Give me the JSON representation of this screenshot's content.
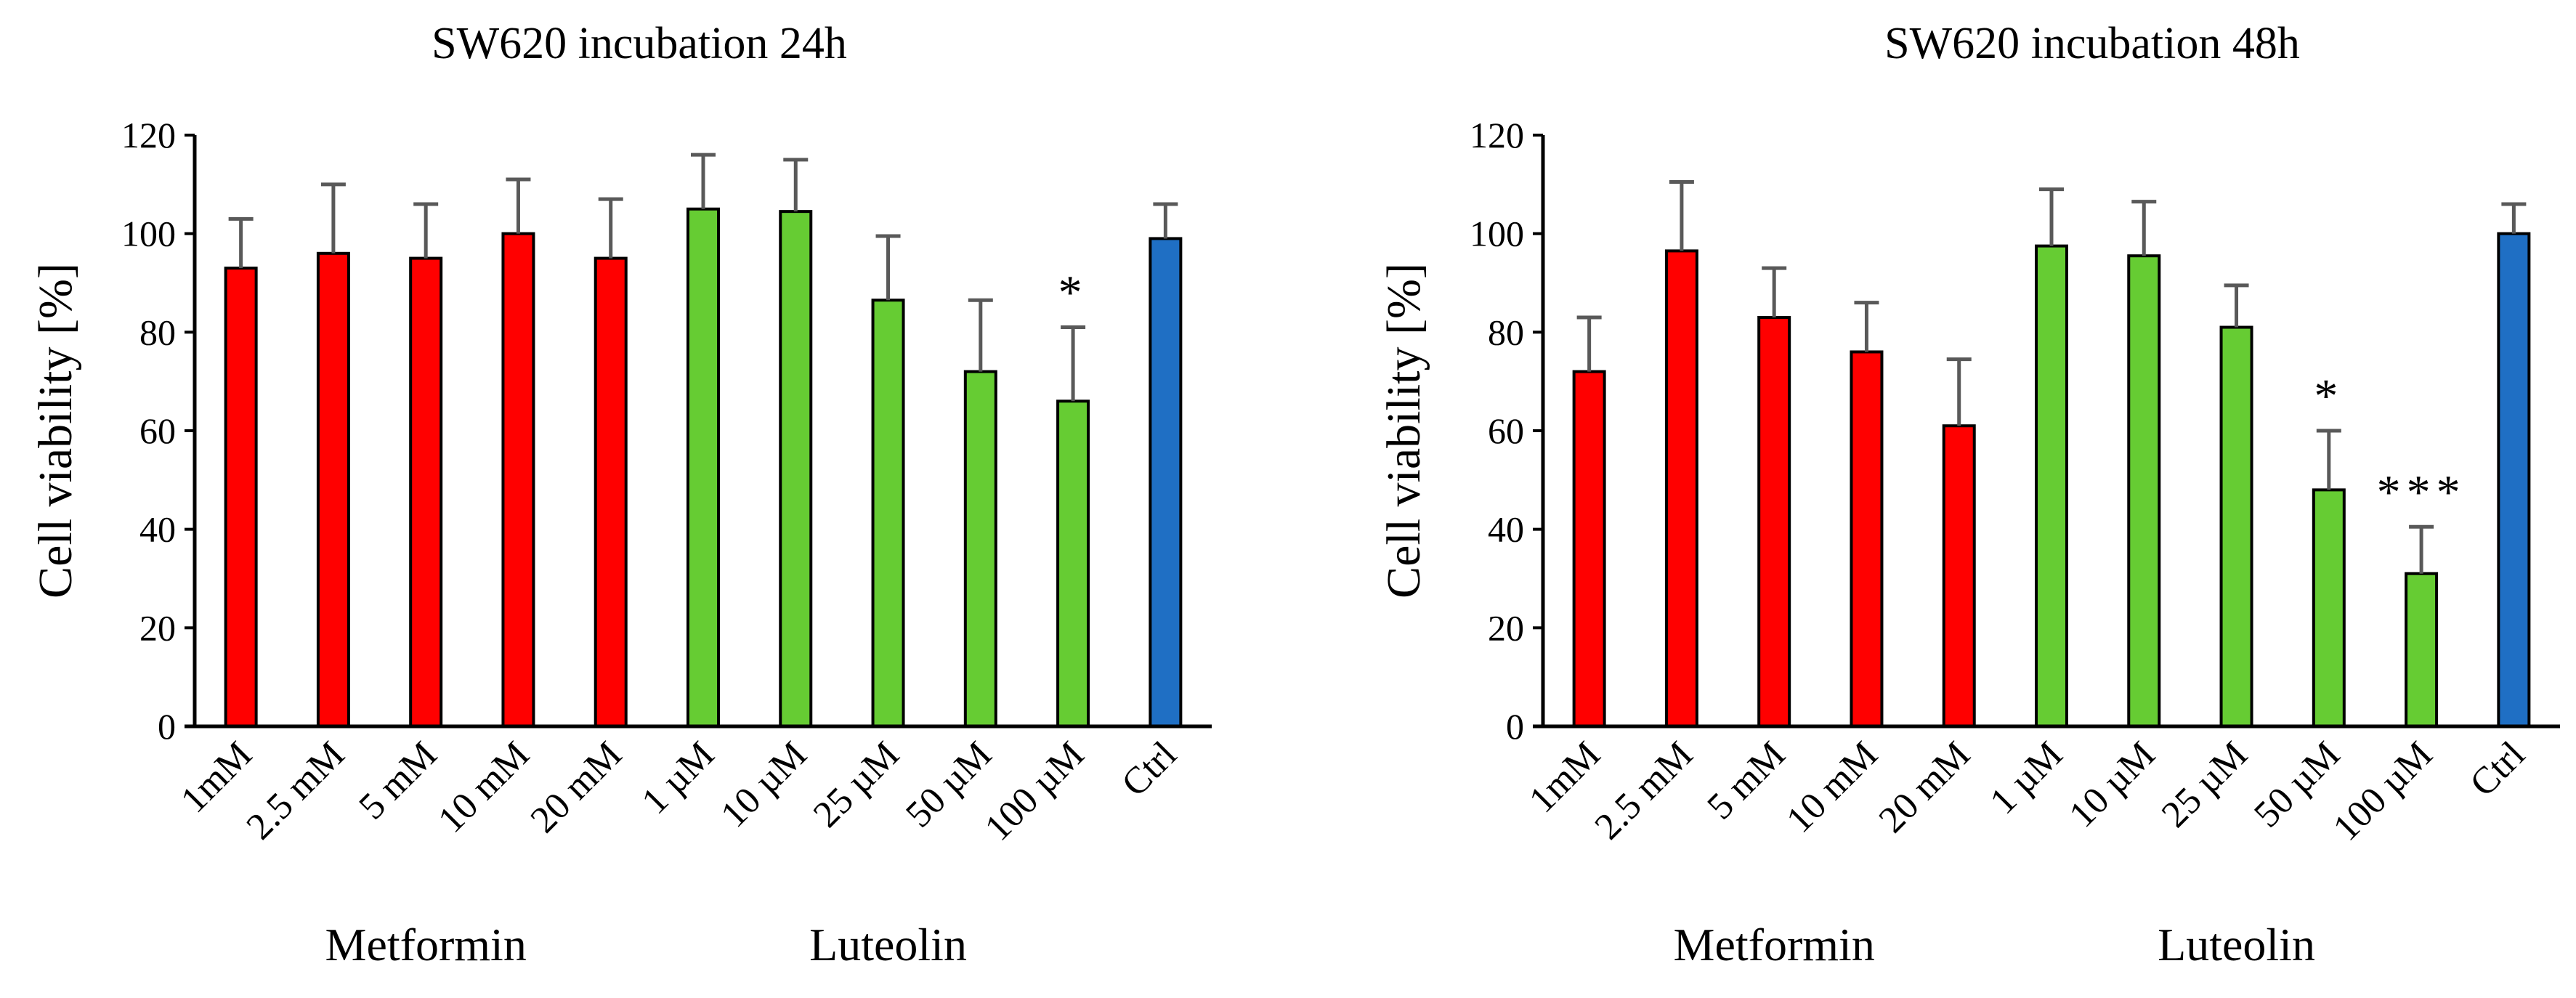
{
  "chart_data": [
    {
      "type": "bar",
      "title": "SW620 incubation 24h",
      "xlabel": "",
      "ylabel": "Cell viability [%]",
      "ylim": [
        0,
        120
      ],
      "yticks": [
        0,
        20,
        40,
        60,
        80,
        100,
        120
      ],
      "grid": false,
      "legend": "none",
      "categories": [
        "1mM",
        "2.5 mM",
        "5 mM",
        "10 mM",
        "20 mM",
        "1 µM",
        "10 µM",
        "25 µM",
        "50 µM",
        "100 µM",
        "Ctrl"
      ],
      "values": [
        93,
        96,
        95,
        100,
        95,
        105,
        104.5,
        86.5,
        72,
        66,
        99
      ],
      "errors": [
        10,
        14,
        11,
        11,
        12,
        11,
        10.5,
        13,
        14.5,
        15,
        7
      ],
      "significance": [
        "",
        "",
        "",
        "",
        "",
        "",
        "",
        "",
        "",
        "*",
        ""
      ],
      "bar_colors": [
        "#ff0000",
        "#ff0000",
        "#ff0000",
        "#ff0000",
        "#ff0000",
        "#66cc33",
        "#66cc33",
        "#66cc33",
        "#66cc33",
        "#66cc33",
        "#1f6fc4"
      ],
      "group_labels": [
        {
          "label": "Metformin",
          "categories": [
            0,
            4
          ]
        },
        {
          "label": "Luteolin",
          "categories": [
            5,
            9
          ]
        }
      ]
    },
    {
      "type": "bar",
      "title": "SW620 incubation 48h",
      "xlabel": "",
      "ylabel": "Cell viability [%]",
      "ylim": [
        0,
        120
      ],
      "yticks": [
        0,
        20,
        40,
        60,
        80,
        100,
        120
      ],
      "grid": false,
      "legend": "none",
      "categories": [
        "1mM",
        "2.5 mM",
        "5 mM",
        "10 mM",
        "20 mM",
        "1 µM",
        "10 µM",
        "25 µM",
        "50 µM",
        "100 µM",
        "Ctrl"
      ],
      "values": [
        72,
        96.5,
        83,
        76,
        61,
        97.5,
        95.5,
        81,
        48,
        31,
        100
      ],
      "errors": [
        11,
        14,
        10,
        10,
        13.5,
        11.5,
        11,
        8.5,
        12,
        9.5,
        6
      ],
      "significance": [
        "",
        "",
        "",
        "",
        "",
        "",
        "",
        "",
        "*",
        "***",
        ""
      ],
      "bar_colors": [
        "#ff0000",
        "#ff0000",
        "#ff0000",
        "#ff0000",
        "#ff0000",
        "#66cc33",
        "#66cc33",
        "#66cc33",
        "#66cc33",
        "#66cc33",
        "#1f6fc4"
      ],
      "group_labels": [
        {
          "label": "Metformin",
          "categories": [
            0,
            4
          ]
        },
        {
          "label": "Luteolin",
          "categories": [
            5,
            9
          ]
        }
      ]
    }
  ]
}
